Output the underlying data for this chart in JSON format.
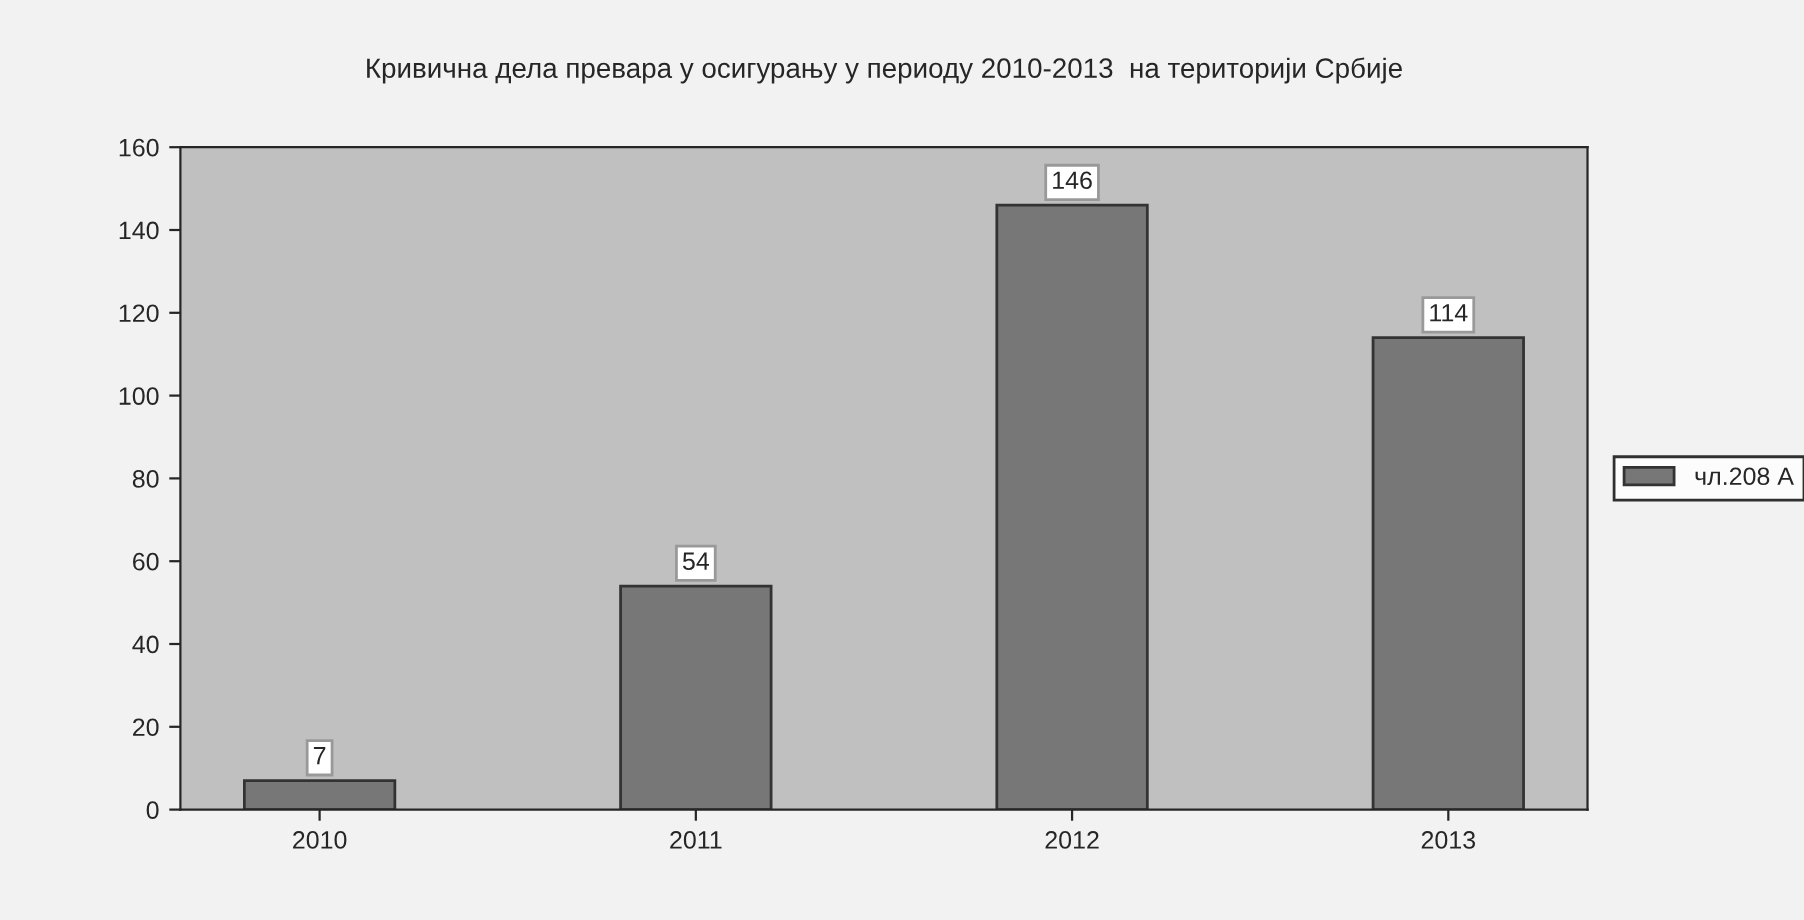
{
  "chart_data": {
    "type": "bar",
    "title": "Кривична дела превара у осигурању у периоду 2010-2013  на територији Србије",
    "categories": [
      "2010",
      "2011",
      "2012",
      "2013"
    ],
    "series": [
      {
        "name": "чл.208 А",
        "color": "#777777",
        "values": [
          7,
          54,
          146,
          114
        ]
      }
    ],
    "ylim": [
      0,
      160
    ],
    "yticks": [
      0,
      20,
      40,
      60,
      80,
      100,
      120,
      140,
      160
    ],
    "data_labels": true,
    "legend": "right",
    "grid": false
  }
}
